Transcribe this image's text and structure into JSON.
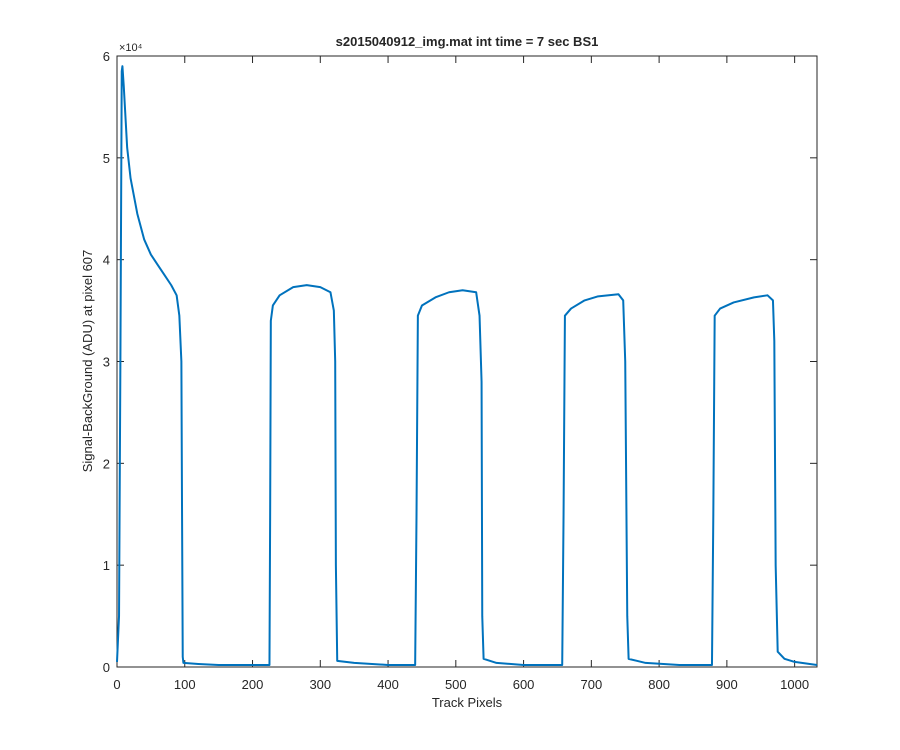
{
  "chart_data": {
    "type": "line",
    "title": "s2015040912_img.mat int time = 7 sec   BS1",
    "xlabel": "Track Pixels",
    "ylabel": "Signal-BackGround (ADU) at pixel 607",
    "y_exponent_label": "×10⁴",
    "xlim": [
      0,
      1033
    ],
    "xticks": [
      0,
      100,
      200,
      300,
      400,
      500,
      600,
      700,
      800,
      900,
      1000
    ],
    "ylim": [
      0,
      6
    ],
    "yticks": [
      0,
      1,
      2,
      3,
      4,
      5,
      6
    ],
    "series": [
      {
        "color": "#0072bd",
        "x": [
          0,
          3,
          5,
          7,
          8,
          10,
          15,
          20,
          30,
          40,
          50,
          60,
          70,
          80,
          88,
          92,
          95,
          96,
          97,
          98,
          120,
          150,
          200,
          225,
          226,
          227,
          230,
          240,
          260,
          280,
          300,
          315,
          320,
          322,
          323,
          325,
          350,
          400,
          440,
          442,
          444,
          450,
          470,
          490,
          510,
          530,
          535,
          538,
          539,
          541,
          560,
          600,
          657,
          659,
          661,
          670,
          690,
          710,
          740,
          747,
          750,
          753,
          755,
          780,
          830,
          878,
          880,
          882,
          890,
          910,
          940,
          960,
          968,
          970,
          972,
          975,
          985,
          1000,
          1033
        ],
        "values": [
          0.05,
          0.5,
          3,
          5.85,
          5.9,
          5.7,
          5.1,
          4.8,
          4.45,
          4.2,
          4.05,
          3.95,
          3.85,
          3.75,
          3.65,
          3.45,
          3.0,
          1.5,
          0.1,
          0.04,
          0.03,
          0.02,
          0.02,
          0.02,
          1.5,
          3.4,
          3.55,
          3.65,
          3.73,
          3.75,
          3.73,
          3.68,
          3.5,
          3.0,
          1.0,
          0.06,
          0.04,
          0.02,
          0.02,
          1.5,
          3.45,
          3.55,
          3.63,
          3.68,
          3.7,
          3.68,
          3.45,
          2.8,
          0.5,
          0.08,
          0.04,
          0.02,
          0.02,
          1.5,
          3.45,
          3.52,
          3.6,
          3.64,
          3.66,
          3.6,
          3.0,
          0.5,
          0.08,
          0.04,
          0.02,
          0.02,
          1.5,
          3.45,
          3.52,
          3.58,
          3.63,
          3.65,
          3.6,
          3.2,
          1.0,
          0.15,
          0.08,
          0.05,
          0.02
        ]
      }
    ]
  }
}
